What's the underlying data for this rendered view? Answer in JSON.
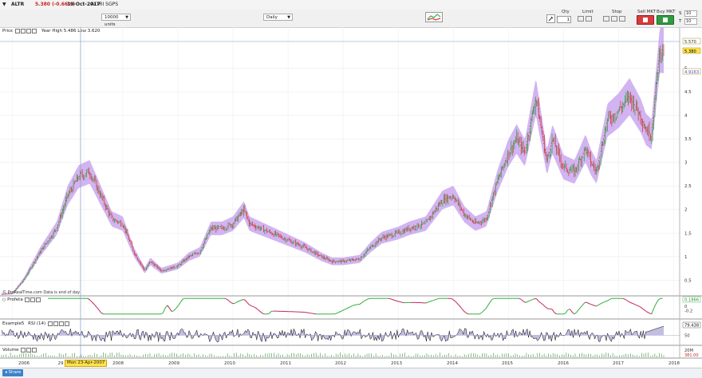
{
  "titlebar": {
    "symbol": "ALTR",
    "price_change": "5.380 (-0.66%)",
    "date": "19-Oct-2017",
    "name": "ALTRI SGPS"
  },
  "toolbar": {
    "units": "10000 units",
    "timeframe": "Daily",
    "order_labels": {
      "qty": "Qty",
      "limit": "Limit",
      "stop": "Stop",
      "sell": "Sell MKT",
      "buy": "Buy MKT"
    },
    "qty_value": "1",
    "side_letters": [
      "S",
      "T"
    ],
    "side_values": [
      "10",
      "10"
    ]
  },
  "price_panel": {
    "label": "Price",
    "info": "Year High 5.486 Low 3.620",
    "source_note": "© ProRealTime.com  Data is end of day",
    "tags": {
      "high": "5.570",
      "current": "5.380",
      "other": "4.9163"
    },
    "colors": {
      "band": "#c9a7ef",
      "up": "#2a9d3c",
      "down": "#d62f2f",
      "current_tag": "#ffe34d"
    }
  },
  "profeta_panel": {
    "label": "Profeta",
    "value_tag": "0.1866",
    "ticks": [
      "0",
      "-0.2"
    ]
  },
  "rsi_panel": {
    "label": "Example5",
    "indicator": "RSI (14)",
    "value_tag": "79.438",
    "ticks": [
      "50"
    ],
    "colors": {
      "fill": "#b9b7de",
      "line": "#000000"
    }
  },
  "volume_panel": {
    "label": "Volume",
    "value_tag": "381.00",
    "ticks": [
      "20M"
    ]
  },
  "crosshair_date": "Mon 23-Apr-2007",
  "footer": {
    "share_label": "Share"
  },
  "chart_data": {
    "type": "line",
    "title": "",
    "x_ticks": [
      "2006",
      "29",
      "2008",
      "2009",
      "2010",
      "2011",
      "2012",
      "2013",
      "2014",
      "2015",
      "2016",
      "2017",
      "2018"
    ],
    "y_ticks": [
      "0.5",
      "1",
      "1.5",
      "2",
      "2.5",
      "3",
      "3.5",
      "4",
      "4.5",
      "5"
    ],
    "ylim": [
      0,
      5.7
    ],
    "grid": true,
    "series": [
      {
        "x": [
          2005.8,
          2006.0,
          2006.2,
          2006.5,
          2006.8,
          2007.0,
          2007.2,
          2007.4,
          2007.6,
          2007.8,
          2008.0,
          2008.2,
          2008.4,
          2008.5,
          2008.7,
          2009.0,
          2009.2,
          2009.4,
          2009.6,
          2009.8,
          2010.0,
          2010.2,
          2010.3,
          2010.5,
          2010.7,
          2011.0,
          2011.3,
          2011.6,
          2011.8,
          2012.0,
          2012.3,
          2012.5,
          2012.7,
          2013.0,
          2013.2,
          2013.5,
          2013.8,
          2014.0,
          2014.2,
          2014.4,
          2014.6,
          2014.8,
          2015.0,
          2015.15,
          2015.3,
          2015.5,
          2015.7,
          2015.8,
          2016.0,
          2016.2,
          2016.4,
          2016.5,
          2016.6,
          2016.8,
          2017.0,
          2017.2,
          2017.4,
          2017.5,
          2017.6,
          2017.75,
          2017.8
        ],
        "values": [
          0.2,
          0.22,
          0.5,
          1.1,
          1.6,
          2.3,
          2.7,
          2.8,
          2.3,
          1.8,
          1.7,
          1.1,
          0.7,
          0.9,
          0.7,
          0.8,
          1.0,
          1.1,
          1.6,
          1.6,
          1.7,
          2.0,
          1.7,
          1.6,
          1.5,
          1.35,
          1.2,
          1.0,
          0.9,
          0.9,
          0.95,
          1.2,
          1.4,
          1.5,
          1.6,
          1.7,
          2.2,
          2.3,
          1.9,
          1.7,
          1.8,
          2.6,
          3.2,
          3.5,
          3.2,
          4.4,
          3.0,
          3.5,
          2.9,
          2.8,
          3.3,
          3.0,
          2.8,
          3.9,
          4.1,
          4.4,
          4.0,
          3.7,
          3.6,
          5.4,
          5.38
        ]
      }
    ]
  }
}
